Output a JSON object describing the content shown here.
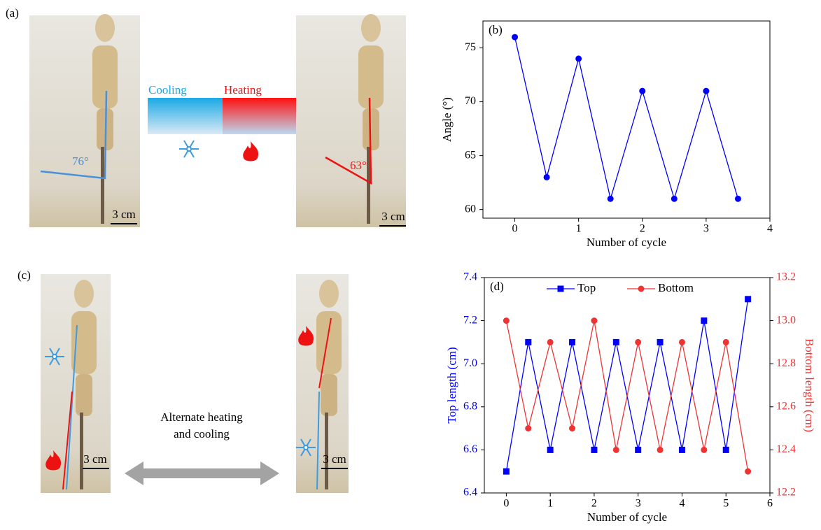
{
  "panel_a": {
    "label": "(a)",
    "cooling": "Cooling",
    "heating": "Heating",
    "angle_left": "76°",
    "angle_right": "63°",
    "scale_bars": [
      "3 cm",
      "3 cm"
    ]
  },
  "panel_c": {
    "label": "(c)",
    "caption": [
      "Alternate heating",
      "and cooling"
    ],
    "scale_bars": [
      "3 cm",
      "3 cm"
    ]
  },
  "chart_data": [
    {
      "type": "line",
      "panel_label": "(b)",
      "xlabel": "Number of cycle",
      "ylabel": "Angle (°)",
      "x": [
        0,
        0.5,
        1,
        1.5,
        2,
        2.5,
        3,
        3.5
      ],
      "series": [
        {
          "name": null,
          "color": "#0000ff",
          "marker": "circle",
          "values": [
            76,
            63,
            74,
            61,
            71,
            61,
            71,
            61
          ]
        }
      ],
      "xlim": [
        -0.5,
        4
      ],
      "xticks": [
        0,
        1,
        2,
        3,
        4
      ],
      "ylim": [
        59.2,
        77.5
      ],
      "yticks": [
        60,
        65,
        70,
        75
      ]
    },
    {
      "type": "line",
      "panel_label": "(d)",
      "xlabel": "Number of cycle",
      "ylabel": "Top length (cm)",
      "y2label": "Bottom length (cm)",
      "x": [
        0,
        0.5,
        1,
        1.5,
        2,
        2.5,
        3,
        3.5,
        4,
        4.5,
        5,
        5.5
      ],
      "series": [
        {
          "name": "Top",
          "color": "#0000ff",
          "marker": "square",
          "values": [
            6.5,
            7.1,
            6.6,
            7.1,
            6.6,
            7.1,
            6.6,
            7.1,
            6.6,
            7.2,
            6.6,
            7.3
          ]
        },
        {
          "name": "Bottom",
          "color": "#ee3333",
          "marker": "circle",
          "axis": "y2",
          "values": [
            13.0,
            12.5,
            12.9,
            12.5,
            13.0,
            12.4,
            12.9,
            12.4,
            12.9,
            12.4,
            12.9,
            12.3
          ]
        }
      ],
      "xlim": [
        -0.5,
        6
      ],
      "xticks": [
        0,
        1,
        2,
        3,
        4,
        5,
        6
      ],
      "ylim": [
        6.4,
        7.4
      ],
      "yticks": [
        6.4,
        6.6,
        6.8,
        {
          "value": 7,
          "label": "7.0"
        },
        7.2,
        7.4
      ],
      "y2lim": [
        12.2,
        13.2
      ],
      "y2ticks": [
        12.2,
        12.4,
        12.6,
        12.8,
        {
          "value": 13,
          "label": "13.0"
        },
        13.2
      ],
      "legend": "upper center"
    }
  ]
}
